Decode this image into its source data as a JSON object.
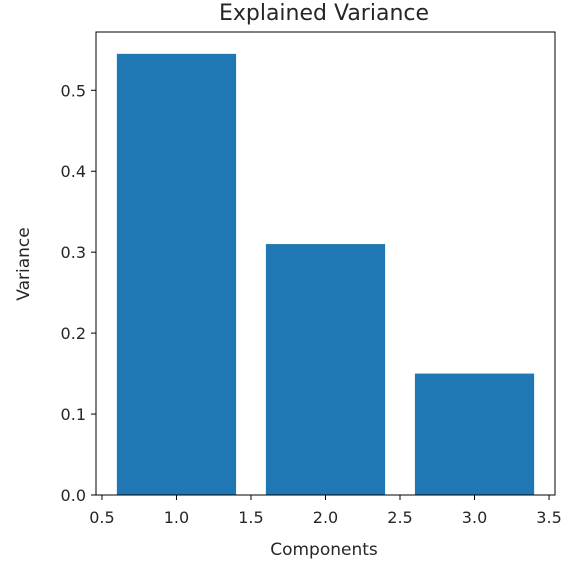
{
  "chart_data": {
    "type": "bar",
    "title": "Explained Variance",
    "xlabel": "Components",
    "ylabel": "Variance",
    "x": [
      1,
      2,
      3
    ],
    "values": [
      0.545,
      0.31,
      0.15
    ],
    "bar_width": 0.8,
    "xlim": [
      0.46,
      3.54
    ],
    "ylim": [
      0,
      0.572
    ],
    "xticks": [
      0.5,
      1.0,
      1.5,
      2.0,
      2.5,
      3.0,
      3.5
    ],
    "xtick_labels": [
      "0.5",
      "1.0",
      "1.5",
      "2.0",
      "2.5",
      "3.0",
      "3.5"
    ],
    "yticks": [
      0.0,
      0.1,
      0.2,
      0.3,
      0.4,
      0.5
    ],
    "ytick_labels": [
      "0.0",
      "0.1",
      "0.2",
      "0.3",
      "0.4",
      "0.5"
    ],
    "grid": false,
    "legend": "none",
    "bar_color": "#1f77b4"
  }
}
